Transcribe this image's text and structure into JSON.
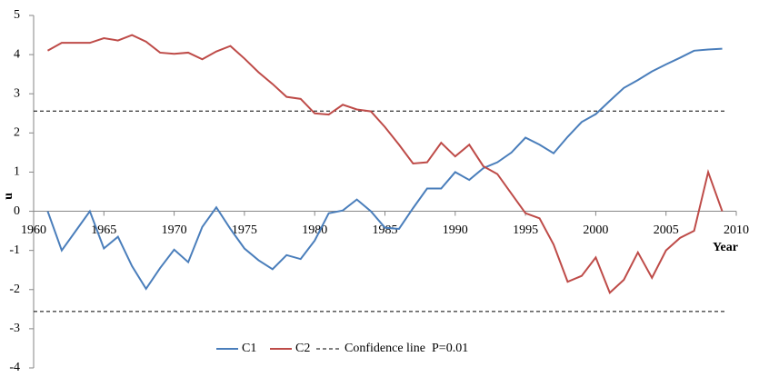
{
  "chart_data": {
    "type": "line",
    "y_label": "u",
    "x_label": "Year",
    "x": [
      1961,
      1962,
      1963,
      1964,
      1965,
      1966,
      1967,
      1968,
      1969,
      1970,
      1971,
      1972,
      1973,
      1974,
      1975,
      1976,
      1977,
      1978,
      1979,
      1980,
      1981,
      1982,
      1983,
      1984,
      1985,
      1986,
      1987,
      1988,
      1989,
      1990,
      1991,
      1992,
      1993,
      1994,
      1995,
      1996,
      1997,
      1998,
      1999,
      2000,
      2001,
      2002,
      2003,
      2004,
      2005,
      2006,
      2007,
      2008,
      2009
    ],
    "series": [
      {
        "name": "C1",
        "color": "#4a7ebb",
        "values": [
          0,
          -1.0,
          -0.5,
          0,
          -0.95,
          -0.65,
          -1.4,
          -1.98,
          -1.45,
          -0.98,
          -1.3,
          -0.4,
          0.1,
          -0.45,
          -0.95,
          -1.25,
          -1.48,
          -1.12,
          -1.22,
          -0.75,
          -0.05,
          0.02,
          0.3,
          0.0,
          -0.42,
          -0.45,
          0.08,
          0.58,
          0.58,
          1.0,
          0.8,
          1.1,
          1.25,
          1.5,
          1.88,
          1.7,
          1.48,
          1.9,
          2.28,
          2.48,
          2.82,
          3.15,
          3.35,
          3.57,
          3.75,
          3.92,
          4.1,
          4.13,
          4.15
        ]
      },
      {
        "name": "C2",
        "color": "#be4b48",
        "values": [
          4.1,
          4.3,
          4.3,
          4.3,
          4.42,
          4.36,
          4.5,
          4.33,
          4.05,
          4.02,
          4.05,
          3.88,
          4.08,
          4.22,
          3.9,
          3.55,
          3.25,
          2.92,
          2.87,
          2.5,
          2.47,
          2.72,
          2.6,
          2.55,
          2.15,
          1.7,
          1.22,
          1.25,
          1.75,
          1.4,
          1.7,
          1.15,
          0.95,
          0.45,
          -0.05,
          -0.18,
          -0.85,
          -1.8,
          -1.65,
          -1.18,
          -2.08,
          -1.75,
          -1.05,
          -1.7,
          -1.0,
          -0.68,
          -0.5,
          1.0,
          0.0
        ]
      }
    ],
    "reference_lines": {
      "name": "Confidence line  P=0.01",
      "color": "#000000",
      "values": [
        2.56,
        -2.56
      ]
    },
    "xlim": [
      1960,
      2010
    ],
    "xticks": [
      1960,
      1965,
      1970,
      1975,
      1980,
      1985,
      1990,
      1995,
      2000,
      2005,
      2010
    ],
    "ylim": [
      -4,
      5
    ],
    "yticks": [
      -4,
      -3,
      -2,
      -1,
      0,
      1,
      2,
      3,
      4,
      5
    ]
  }
}
